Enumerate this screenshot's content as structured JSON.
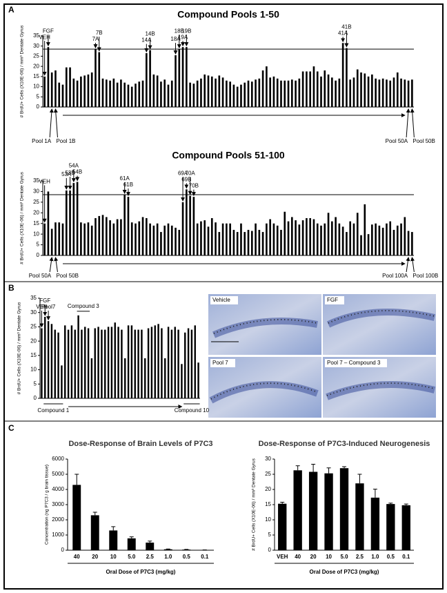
{
  "panels": [
    "A",
    "B",
    "C"
  ],
  "images": {
    "labels": [
      "Vehicle",
      "FGF",
      "Pool 7",
      "Pool 7 – Compound 3"
    ]
  },
  "chart_data": [
    {
      "type": "bar",
      "title": "Compound Pools 1-50",
      "y_label": "# BrdU+ Cells (X10E-06) / mm³ Dentate Gyrus",
      "label_side": "top",
      "color": "#000000",
      "reference_line": 28.5,
      "ylim": [
        0,
        35
      ],
      "yticks": [
        0,
        5,
        10,
        15,
        20,
        25,
        30,
        35
      ],
      "categories": [
        "VEH",
        "FGF",
        null,
        null,
        null,
        null,
        null,
        null,
        null,
        null,
        null,
        null,
        null,
        null,
        "7A",
        "7B",
        null,
        null,
        null,
        null,
        null,
        null,
        null,
        null,
        null,
        null,
        null,
        null,
        "14A",
        "14B",
        null,
        null,
        null,
        null,
        null,
        null,
        "18A",
        "18B",
        "19A",
        "19B",
        null,
        null,
        null,
        null,
        null,
        null,
        null,
        null,
        null,
        null,
        null,
        null,
        null,
        null,
        null,
        null,
        null,
        null,
        null,
        null,
        null,
        null,
        null,
        null,
        null,
        null,
        null,
        null,
        null,
        null,
        null,
        null,
        null,
        null,
        null,
        null,
        null,
        null,
        null,
        null,
        null,
        null,
        "41A",
        "41B",
        null,
        null,
        null,
        null,
        null,
        null,
        null,
        null,
        null,
        null,
        null,
        null,
        null,
        null,
        null,
        null,
        null,
        null
      ],
      "bottom_labels": [
        null,
        null,
        "Pool 1A",
        "Pool 1B",
        null,
        null,
        null,
        null,
        null,
        null,
        null,
        null,
        null,
        null,
        null,
        null,
        null,
        null,
        null,
        null,
        null,
        null,
        null,
        null,
        null,
        null,
        null,
        null,
        null,
        null,
        null,
        null,
        null,
        null,
        null,
        null,
        null,
        null,
        null,
        null,
        null,
        null,
        null,
        null,
        null,
        null,
        null,
        null,
        null,
        null,
        null,
        null,
        null,
        null,
        null,
        null,
        null,
        null,
        null,
        null,
        null,
        null,
        null,
        null,
        null,
        null,
        null,
        null,
        null,
        null,
        null,
        null,
        null,
        null,
        null,
        null,
        null,
        null,
        null,
        null,
        null,
        null,
        null,
        null,
        null,
        null,
        null,
        null,
        null,
        null,
        null,
        null,
        null,
        null,
        null,
        null,
        null,
        null,
        null,
        null,
        "Pool 50A",
        "Pool 50B"
      ],
      "values": [
        15,
        29.5,
        17,
        18,
        12,
        11,
        19.5,
        19.5,
        14,
        13,
        15,
        15.5,
        16,
        17,
        28.5,
        27,
        14,
        13.5,
        13,
        14,
        12,
        13.5,
        12,
        11,
        10,
        11.5,
        12.5,
        13,
        26.5,
        28,
        16,
        15.5,
        12.5,
        13.5,
        11,
        13,
        25.5,
        28.5,
        29.5,
        29.5,
        12,
        11.5,
        13,
        14,
        16,
        15.5,
        15,
        14,
        15.5,
        14.5,
        13,
        12.5,
        11,
        10,
        11,
        12,
        13,
        12.5,
        13.5,
        14,
        18,
        20,
        14.5,
        15,
        14,
        13,
        13,
        13,
        13.5,
        13,
        14,
        17.5,
        17.5,
        17.5,
        20,
        17.5,
        15,
        18,
        16,
        14.5,
        13,
        14,
        31.5,
        29,
        13.5,
        14.5,
        18.5,
        17,
        16.5,
        15,
        16,
        14,
        13.5,
        14,
        13.5,
        13,
        14.5,
        17,
        14,
        13.5,
        13,
        13.5
      ]
    },
    {
      "type": "bar",
      "title": "Compound Pools 51-100",
      "y_label": "# BrdU+ Cells (X10E-06) / mm³ Dentate Gyrus",
      "label_side": "top",
      "color": "#000000",
      "reference_line": 28.5,
      "ylim": [
        0,
        35
      ],
      "yticks": [
        0,
        5,
        10,
        15,
        20,
        25,
        30,
        35
      ],
      "categories": [
        "VEH",
        null,
        null,
        null,
        null,
        null,
        "53A",
        "53B",
        "54A",
        "54B",
        null,
        null,
        null,
        null,
        null,
        null,
        null,
        null,
        null,
        null,
        null,
        null,
        "61A",
        "61B",
        null,
        null,
        null,
        null,
        null,
        null,
        null,
        null,
        null,
        null,
        null,
        null,
        null,
        null,
        "69A",
        "69B",
        "70A",
        "70B",
        null,
        null,
        null,
        null,
        null,
        null,
        null,
        null,
        null,
        null,
        null,
        null,
        null,
        null,
        null,
        null,
        null,
        null,
        null,
        null,
        null,
        null,
        null,
        null,
        null,
        null,
        null,
        null,
        null,
        null,
        null,
        null,
        null,
        null,
        null,
        null,
        null,
        null,
        null,
        null,
        null,
        null,
        null,
        null,
        null,
        null,
        null,
        null,
        null,
        null,
        null,
        null,
        null,
        null,
        null,
        null,
        null,
        null,
        null,
        null
      ],
      "bottom_labels": [
        null,
        null,
        "Pool 50A",
        "Pool 50B",
        null,
        null,
        null,
        null,
        null,
        null,
        null,
        null,
        null,
        null,
        null,
        null,
        null,
        null,
        null,
        null,
        null,
        null,
        null,
        null,
        null,
        null,
        null,
        null,
        null,
        null,
        null,
        null,
        null,
        null,
        null,
        null,
        null,
        null,
        null,
        null,
        null,
        null,
        null,
        null,
        null,
        null,
        null,
        null,
        null,
        null,
        null,
        null,
        null,
        null,
        null,
        null,
        null,
        null,
        null,
        null,
        null,
        null,
        null,
        null,
        null,
        null,
        null,
        null,
        null,
        null,
        null,
        null,
        null,
        null,
        null,
        null,
        null,
        null,
        null,
        null,
        null,
        null,
        null,
        null,
        null,
        null,
        null,
        null,
        null,
        null,
        null,
        null,
        null,
        null,
        null,
        null,
        null,
        null,
        null,
        null,
        "Pool 100A",
        "Pool 100B"
      ],
      "values": [
        15,
        30,
        12.5,
        15.5,
        15.5,
        15,
        30.5,
        30.5,
        34,
        34.5,
        15.5,
        15,
        15.5,
        14,
        17.5,
        18.5,
        19,
        18,
        16.5,
        15,
        17,
        17,
        28.5,
        27.5,
        15.5,
        15,
        16,
        18,
        17.5,
        15,
        14,
        15,
        11,
        14,
        15,
        14,
        13,
        12,
        25,
        31,
        28,
        27.5,
        15,
        16,
        16.5,
        13.5,
        17.5,
        15.5,
        11,
        15,
        15,
        15,
        12,
        11,
        15,
        11,
        12,
        11.5,
        15,
        12,
        11,
        15,
        17,
        15,
        14,
        12,
        20.5,
        16,
        18,
        16.5,
        14.5,
        16.5,
        17.5,
        17.5,
        17,
        15,
        14,
        15,
        20,
        16,
        18,
        15,
        13.5,
        11,
        16,
        15,
        20,
        9.5,
        24,
        10,
        14.5,
        15,
        14,
        13,
        15,
        16,
        12,
        14,
        15,
        18,
        11.5,
        11
      ]
    },
    {
      "type": "bar",
      "y_label": "# BrdU+ Cells (X10E-06) / mm³ Dentate Gyrus",
      "label_side": "top",
      "color": "#000000",
      "ylim": [
        0,
        35
      ],
      "yticks": [
        0,
        5,
        10,
        15,
        20,
        25,
        30,
        35
      ],
      "annotations": [
        "Compound 3",
        "Compound 1",
        "Compound 10"
      ],
      "categories": [
        "VEH",
        "FGF",
        "Pool7",
        null,
        null,
        null,
        null,
        null,
        null,
        null,
        null,
        null,
        null,
        null,
        null,
        null,
        null,
        null,
        null,
        null,
        null,
        null,
        null,
        null,
        null,
        null,
        null,
        null,
        null,
        null,
        null,
        null,
        null,
        null,
        null,
        null,
        null,
        null,
        null,
        null,
        null,
        null,
        null,
        null,
        null,
        null,
        null,
        null
      ],
      "values": [
        24.5,
        28.5,
        27,
        26,
        24,
        23,
        11.5,
        25.5,
        24,
        25.5,
        24,
        29,
        24,
        25,
        24.5,
        14,
        24.5,
        25,
        24,
        24,
        25,
        25,
        26.5,
        25,
        24,
        14,
        25.5,
        25.5,
        24,
        24,
        24,
        14,
        24.5,
        25,
        25.5,
        26,
        24.5,
        14,
        25,
        24,
        25,
        24,
        12,
        23,
        24.5,
        24,
        25.5,
        12.5
      ]
    },
    {
      "type": "bar",
      "title": "Dose-Response of Brain Levels of P7C3",
      "y_label": "Concentration (ng P7C3 / g brain tissue)",
      "x_label": "Oral Dose of P7C3 (mg/kg)",
      "label_side": "bottom",
      "color": "#000000",
      "ylim": [
        0,
        6000
      ],
      "yticks": [
        0,
        1000,
        2000,
        3000,
        4000,
        5000,
        6000
      ],
      "categories": [
        "40",
        "20",
        "10",
        "5.0",
        "2.5",
        "1.0",
        "0.5",
        "0.1"
      ],
      "values": [
        4300,
        2300,
        1300,
        780,
        500,
        60,
        40,
        10
      ],
      "errors": [
        700,
        200,
        250,
        100,
        100,
        20,
        15,
        10
      ]
    },
    {
      "type": "bar",
      "title": "Dose-Response of P7C3-Induced Neurogenesis",
      "y_label": "# BrdU+ Cells (X10E-06) / mm³ Dentate Gyrus",
      "x_label": "Oral Dose of P7C3 (mg/kg)",
      "label_side": "bottom",
      "color": "#000000",
      "ylim": [
        0,
        30
      ],
      "yticks": [
        0,
        5,
        10,
        15,
        20,
        25,
        30
      ],
      "categories": [
        "VEH",
        "40",
        "20",
        "10",
        "5.0",
        "2.5",
        "1.0",
        "0.5",
        "0.1"
      ],
      "values": [
        15.3,
        26.3,
        25.8,
        25.3,
        27,
        22,
        17.3,
        15.2,
        14.8
      ],
      "errors": [
        0.5,
        1.5,
        2.5,
        1.8,
        0.5,
        3,
        2.8,
        0.3,
        0.4
      ]
    }
  ]
}
